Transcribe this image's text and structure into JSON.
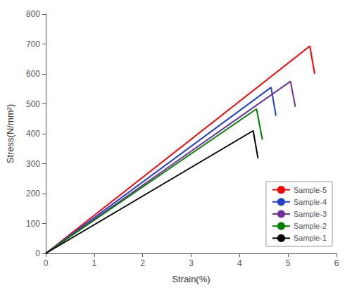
{
  "chart_data": {
    "type": "line",
    "x_label": "Strain(%)",
    "y_label": "Stress(N/mm²)",
    "xlim": [
      0,
      6
    ],
    "ylim": [
      0,
      800
    ],
    "xticks": [
      0,
      1,
      2,
      3,
      4,
      5,
      6
    ],
    "yticks": [
      0,
      100,
      200,
      300,
      400,
      500,
      600,
      700,
      800
    ],
    "grid": false,
    "legend": "lower right",
    "series": [
      {
        "name": "Sample-5",
        "color": "#ff0000",
        "x": [
          0,
          5.45,
          5.55
        ],
        "values": [
          0,
          693,
          600
        ]
      },
      {
        "name": "Sample-4",
        "color": "#2040cc",
        "x": [
          0,
          4.65,
          4.75
        ],
        "values": [
          0,
          555,
          460
        ]
      },
      {
        "name": "Sample-3",
        "color": "#7030a0",
        "x": [
          0,
          5.05,
          5.15
        ],
        "values": [
          0,
          575,
          490
        ]
      },
      {
        "name": "Sample-2",
        "color": "#008000",
        "x": [
          0,
          4.35,
          4.47
        ],
        "values": [
          0,
          483,
          380
        ]
      },
      {
        "name": "Sample-1",
        "color": "#000000",
        "x": [
          0,
          4.28,
          4.38
        ],
        "values": [
          0,
          410,
          318
        ]
      }
    ]
  }
}
